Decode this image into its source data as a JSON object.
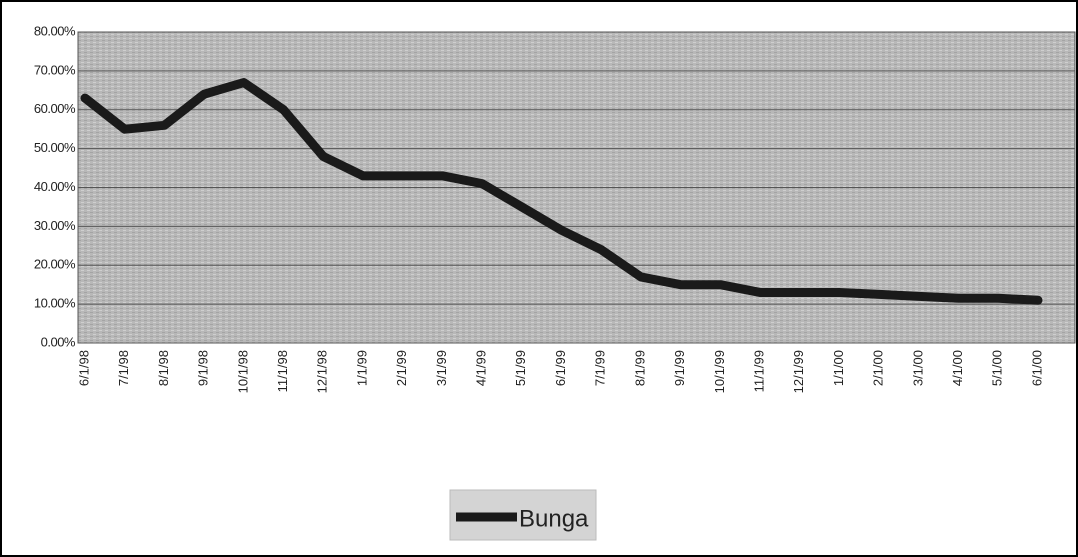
{
  "chart_data": {
    "type": "line",
    "categories": [
      "6/1/98",
      "7/1/98",
      "8/1/98",
      "9/1/98",
      "10/1/98",
      "11/1/98",
      "12/1/98",
      "1/1/99",
      "2/1/99",
      "3/1/99",
      "4/1/99",
      "5/1/99",
      "6/1/99",
      "7/1/99",
      "8/1/99",
      "9/1/99",
      "10/1/99",
      "11/1/99",
      "12/1/99",
      "1/1/00",
      "2/1/00",
      "3/1/00",
      "4/1/00",
      "5/1/00",
      "6/1/00"
    ],
    "series": [
      {
        "name": "Bunga",
        "color": "#1a1a1a",
        "values": [
          63,
          55,
          56,
          64,
          67,
          60,
          48,
          43,
          43,
          43,
          41,
          35,
          29,
          24,
          17,
          15,
          15,
          13,
          13,
          13,
          12.5,
          12,
          11.5,
          11.5,
          11
        ]
      }
    ],
    "ylim": [
      0,
      80
    ],
    "yticks": [
      {
        "value": 0,
        "label": "0.00%"
      },
      {
        "value": 10,
        "label": "10.00%"
      },
      {
        "value": 20,
        "label": "20.00%"
      },
      {
        "value": 30,
        "label": "30.00%"
      },
      {
        "value": 40,
        "label": "40.00%"
      },
      {
        "value": 50,
        "label": "50.00%"
      },
      {
        "value": 60,
        "label": "60.00%"
      },
      {
        "value": 70,
        "label": "70.00%"
      },
      {
        "value": 80,
        "label": "80.00%"
      }
    ],
    "grid": true,
    "legend": "bottom"
  }
}
